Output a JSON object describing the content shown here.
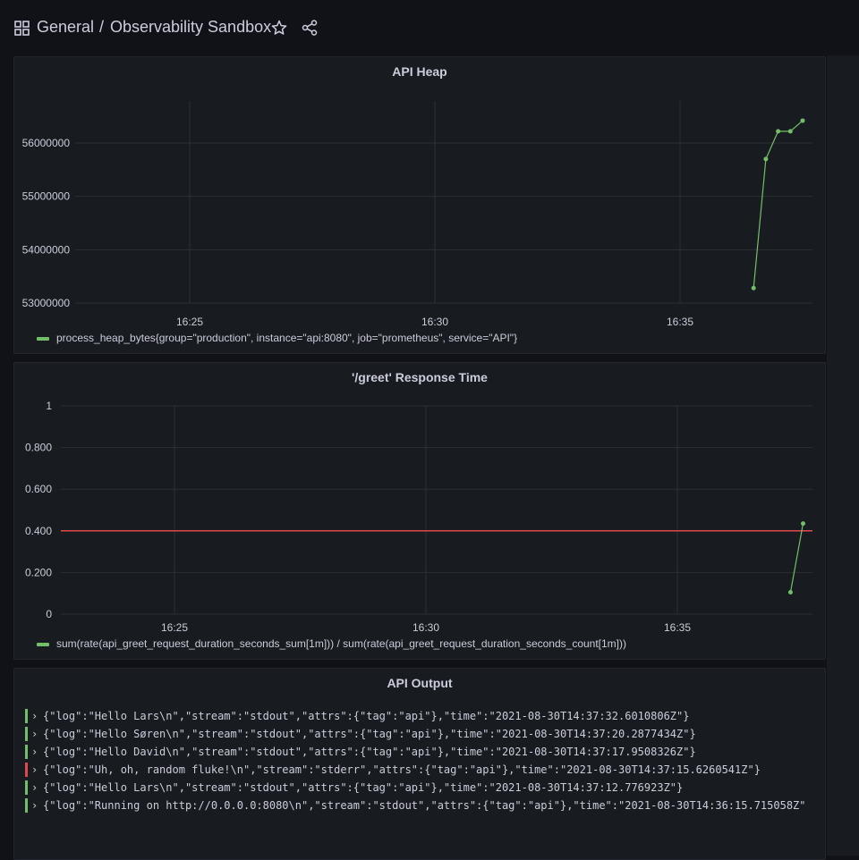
{
  "header": {
    "folder": "General",
    "separator": "/",
    "title": "Observability Sandbox"
  },
  "panels": {
    "heap": {
      "title": "API Heap",
      "legend": "process_heap_bytes{group=\"production\", instance=\"api:8080\", job=\"prometheus\", service=\"API\"}"
    },
    "response": {
      "title": "'/greet' Response Time",
      "legend": "sum(rate(api_greet_request_duration_seconds_sum[1m])) / sum(rate(api_greet_request_duration_seconds_count[1m]))"
    },
    "output": {
      "title": "API Output"
    }
  },
  "chart_data": [
    {
      "type": "line",
      "title": "API Heap",
      "x_ticks": [
        "16:25",
        "16:30",
        "16:35"
      ],
      "y_ticks": [
        53000000,
        54000000,
        55000000,
        56000000
      ],
      "series": [
        {
          "name": "process_heap_bytes{group=\"production\", instance=\"api:8080\", job=\"prometheus\", service=\"API\"}",
          "color": "#73bf69",
          "x": [
            "16:36:30",
            "16:36:45",
            "16:37:00",
            "16:37:15",
            "16:37:30"
          ],
          "values": [
            53280000,
            55700000,
            56220000,
            56220000,
            56420000
          ]
        }
      ],
      "legend": "bottom-left"
    },
    {
      "type": "line",
      "title": "'/greet' Response Time",
      "x_ticks": [
        "16:25",
        "16:30",
        "16:35"
      ],
      "y_ticks": [
        "0",
        "0.200",
        "0.400",
        "0.600",
        "0.800",
        "1"
      ],
      "ylim": [
        0,
        1
      ],
      "threshold": {
        "value": 0.4,
        "color": "#e0484c"
      },
      "series": [
        {
          "name": "sum(rate(api_greet_request_duration_seconds_sum[1m])) / sum(rate(api_greet_request_duration_seconds_count[1m]))",
          "color": "#73bf69",
          "x": [
            "16:37:15",
            "16:37:30"
          ],
          "values": [
            0.105,
            0.435
          ]
        }
      ],
      "legend": "bottom-left"
    }
  ],
  "logs": [
    {
      "level": "info",
      "line": "{\"log\":\"Hello Lars\\n\",\"stream\":\"stdout\",\"attrs\":{\"tag\":\"api\"},\"time\":\"2021-08-30T14:37:32.6010806Z\"}"
    },
    {
      "level": "info",
      "line": "{\"log\":\"Hello Søren\\n\",\"stream\":\"stdout\",\"attrs\":{\"tag\":\"api\"},\"time\":\"2021-08-30T14:37:20.2877434Z\"}"
    },
    {
      "level": "info",
      "line": "{\"log\":\"Hello David\\n\",\"stream\":\"stdout\",\"attrs\":{\"tag\":\"api\"},\"time\":\"2021-08-30T14:37:17.9508326Z\"}"
    },
    {
      "level": "error",
      "line": "{\"log\":\"Uh, oh, random fluke!\\n\",\"stream\":\"stderr\",\"attrs\":{\"tag\":\"api\"},\"time\":\"2021-08-30T14:37:15.6260541Z\"}"
    },
    {
      "level": "info",
      "line": "{\"log\":\"Hello Lars\\n\",\"stream\":\"stdout\",\"attrs\":{\"tag\":\"api\"},\"time\":\"2021-08-30T14:37:12.776923Z\"}"
    },
    {
      "level": "info",
      "line": "{\"log\":\"Running on http://0.0.0.0:8080\\n\",\"stream\":\"stdout\",\"attrs\":{\"tag\":\"api\"},\"time\":\"2021-08-30T14:36:15.715058Z\""
    }
  ],
  "colors": {
    "info": "#73bf69",
    "error": "#e0484c",
    "series": "#73bf69"
  },
  "icons": {
    "dashboards": "grid-icon",
    "favorite": "star-icon",
    "share": "share-icon",
    "expand": "chevron-right-icon"
  }
}
